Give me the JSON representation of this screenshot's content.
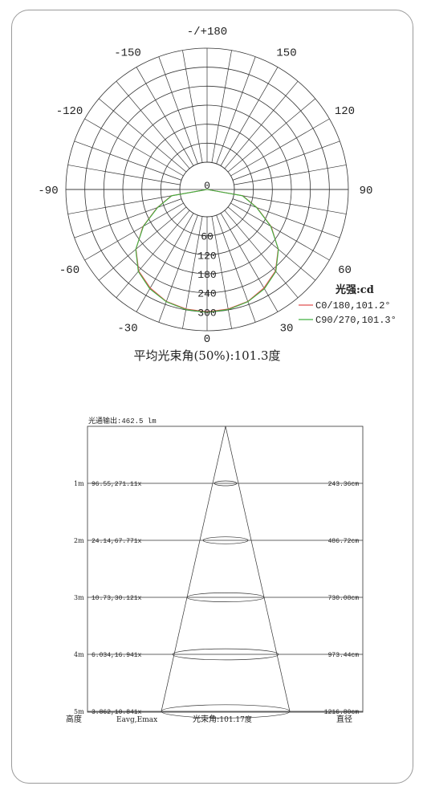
{
  "chart_data": [
    {
      "type": "polar-line",
      "angle_labels": [
        {
          "angle": 180,
          "label": "-/+180"
        },
        {
          "angle": 150,
          "label": "150"
        },
        {
          "angle": 120,
          "label": "120"
        },
        {
          "angle": 90,
          "label": "90"
        },
        {
          "angle": 60,
          "label": "60"
        },
        {
          "angle": 30,
          "label": "30"
        },
        {
          "angle": 0,
          "label": "0"
        },
        {
          "angle": -30,
          "label": "-30"
        },
        {
          "angle": -60,
          "label": "-60"
        },
        {
          "angle": -90,
          "label": "-90"
        },
        {
          "angle": -120,
          "label": "-120"
        },
        {
          "angle": -150,
          "label": "-150"
        }
      ],
      "radial_ticks": [
        "0",
        "60",
        "120",
        "180",
        "240",
        "300"
      ],
      "radial_max": 360,
      "unit_label": "光强:cd",
      "series": [
        {
          "name": "C0/180,101.2°",
          "color": "#e05050",
          "angles": [
            0,
            10,
            20,
            30,
            40,
            50,
            60,
            70,
            80,
            90
          ],
          "values": [
            300,
            297,
            290,
            273,
            250,
            207,
            148,
            82,
            28,
            0
          ]
        },
        {
          "name": "C90/270,101.3°",
          "color": "#40b040",
          "angles": [
            0,
            10,
            20,
            30,
            40,
            50,
            60,
            70,
            80,
            90
          ],
          "values": [
            302,
            299,
            291,
            276,
            252,
            208,
            146,
            80,
            27,
            0
          ]
        }
      ],
      "annotation": "平均光束角(50%):101.3度"
    },
    {
      "type": "illuminance-cone",
      "title": "光通输出:462.5 lm",
      "rows": [
        {
          "height": "1m",
          "eavg_emax": "96.55,271.11x",
          "diameter": "243.36cm"
        },
        {
          "height": "2m",
          "eavg_emax": "24.14,67.771x",
          "diameter": "486.72cm"
        },
        {
          "height": "3m",
          "eavg_emax": "10.73,30.121x",
          "diameter": "730.08cm"
        },
        {
          "height": "4m",
          "eavg_emax": "6.034,16.941x",
          "diameter": "973.44cm"
        },
        {
          "height": "5m",
          "eavg_emax": "3.862,10.841x",
          "diameter": "1216.80cm"
        }
      ],
      "footer": {
        "height_label": "高度",
        "eavg_label": "Eavg,Emax",
        "beam_angle_label": "光束角:",
        "beam_angle_value": "101.17度",
        "diameter_label": "直径"
      }
    }
  ]
}
